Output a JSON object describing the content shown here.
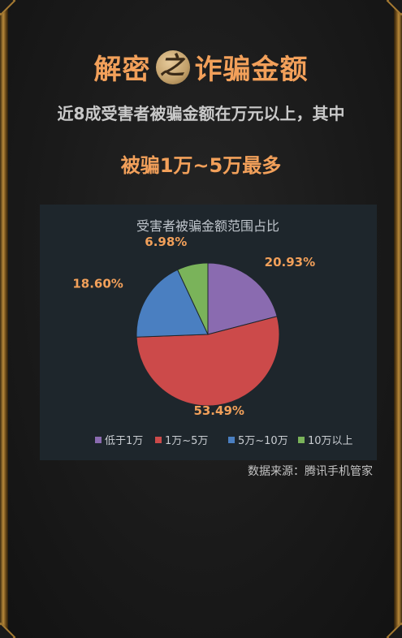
{
  "header": {
    "title_part1": "解密",
    "title_badge": "之",
    "title_part2": "诈骗金额",
    "subtitle_line1": "近8成受害者被骗金额在万元以上，其中",
    "subtitle_line2": "被骗1万~5万最多"
  },
  "colors": {
    "accent": "#f2a05a",
    "panel_bg": "#1e262c"
  },
  "chart_data": {
    "type": "pie",
    "title": "受害者被骗金额范围占比",
    "legend_position": "bottom",
    "categories": [
      "低于1万",
      "1万~5万",
      "5万~10万",
      "10万以上"
    ],
    "values": [
      20.93,
      53.49,
      18.6,
      6.98
    ],
    "value_labels": [
      "20.93%",
      "53.49%",
      "18.60%",
      "6.98%"
    ],
    "colors": [
      "#8a6bb0",
      "#cc4a4a",
      "#4a7fc1",
      "#7ab35a"
    ],
    "label_color": "#f2a05a"
  },
  "footer": {
    "source": "数据来源：腾讯手机管家"
  }
}
